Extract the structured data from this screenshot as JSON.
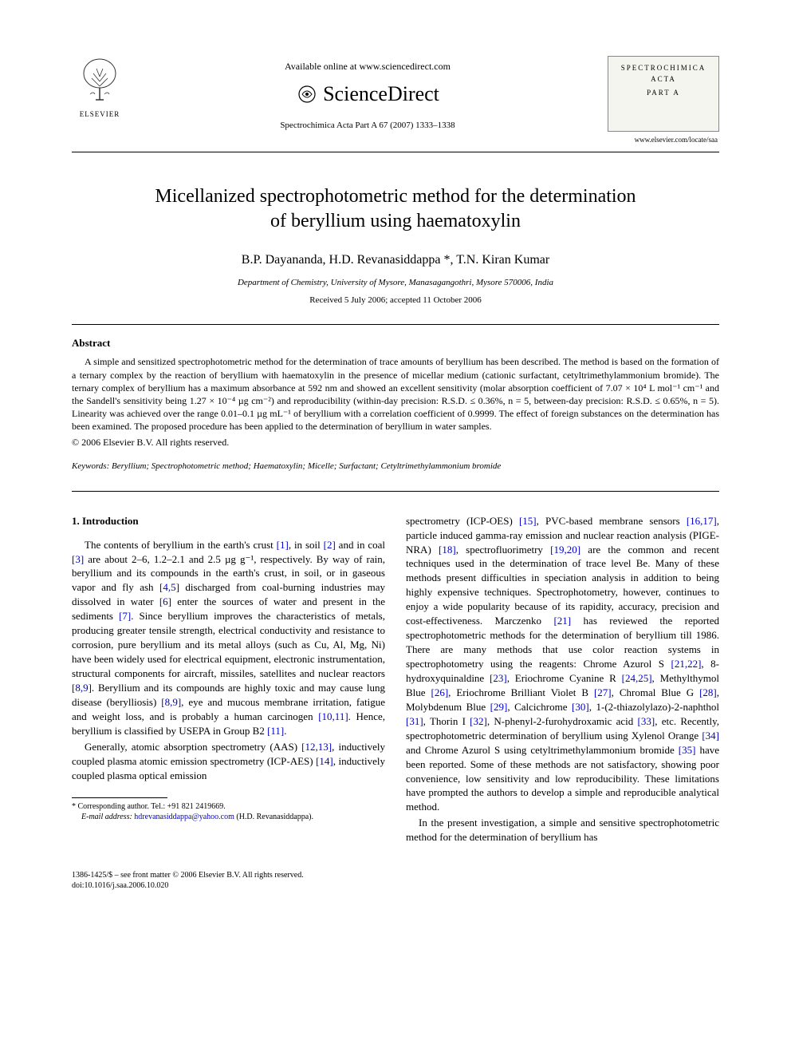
{
  "header": {
    "available_online": "Available online at www.sciencedirect.com",
    "sd_brand": "ScienceDirect",
    "elsevier_label": "ELSEVIER",
    "journal_ref": "Spectrochimica Acta Part A 67 (2007) 1333–1338",
    "journal_box_line1": "SPECTROCHIMICA",
    "journal_box_line2": "ACTA",
    "journal_box_line3": "PART A",
    "journal_url": "www.elsevier.com/locate/saa"
  },
  "article": {
    "title_line1": "Micellanized spectrophotometric method for the determination",
    "title_line2": "of beryllium using haematoxylin",
    "authors": "B.P. Dayananda, H.D. Revanasiddappa *, T.N. Kiran Kumar",
    "affiliation": "Department of Chemistry, University of Mysore, Manasagangothri, Mysore 570006, India",
    "dates": "Received 5 July 2006; accepted 11 October 2006"
  },
  "abstract": {
    "heading": "Abstract",
    "body": "A simple and sensitized spectrophotometric method for the determination of trace amounts of beryllium has been described. The method is based on the formation of a ternary complex by the reaction of beryllium with haematoxylin in the presence of micellar medium (cationic surfactant, cetyltrimethylammonium bromide). The ternary complex of beryllium has a maximum absorbance at 592 nm and showed an excellent sensitivity (molar absorption coefficient of 7.07 × 10⁴ L mol⁻¹ cm⁻¹ and the Sandell's sensitivity being 1.27 × 10⁻⁴ µg cm⁻²) and reproducibility (within-day precision: R.S.D. ≤ 0.36%, n = 5, between-day precision: R.S.D. ≤ 0.65%, n = 5). Linearity was achieved over the range 0.01–0.1 µg mL⁻¹ of beryllium with a correlation coefficient of 0.9999. The effect of foreign substances on the determination has been examined. The proposed procedure has been applied to the determination of beryllium in water samples.",
    "copyright": "© 2006 Elsevier B.V. All rights reserved."
  },
  "keywords": {
    "label": "Keywords:",
    "list": " Beryllium; Spectrophotometric method; Haematoxylin; Micelle; Surfactant; Cetyltrimethylammonium bromide"
  },
  "intro": {
    "heading": "1. Introduction",
    "col1_p1": "The contents of beryllium in the earth's crust [1], in soil [2] and in coal [3] are about 2–6, 1.2–2.1 and 2.5 µg g⁻¹, respectively. By way of rain, beryllium and its compounds in the earth's crust, in soil, or in gaseous vapor and fly ash [4,5] discharged from coal-burning industries may dissolved in water [6] enter the sources of water and present in the sediments [7]. Since beryllium improves the characteristics of metals, producing greater tensile strength, electrical conductivity and resistance to corrosion, pure beryllium and its metal alloys (such as Cu, Al, Mg, Ni) have been widely used for electrical equipment, electronic instrumentation, structural components for aircraft, missiles, satellites and nuclear reactors [8,9]. Beryllium and its compounds are highly toxic and may cause lung disease (berylliosis) [8,9], eye and mucous membrane irritation, fatigue and weight loss, and is probably a human carcinogen [10,11]. Hence, beryllium is classified by USEPA in Group B2 [11].",
    "col1_p2": "Generally, atomic absorption spectrometry (AAS) [12,13], inductively coupled plasma atomic emission spectrometry (ICP-AES) [14], inductively coupled plasma optical emission",
    "col2_p1": "spectrometry (ICP-OES) [15], PVC-based membrane sensors [16,17], particle induced gamma-ray emission and nuclear reaction analysis (PIGE-NRA) [18], spectrofluorimetry [19,20] are the common and recent techniques used in the determination of trace level Be. Many of these methods present difficulties in speciation analysis in addition to being highly expensive techniques. Spectrophotometry, however, continues to enjoy a wide popularity because of its rapidity, accuracy, precision and cost-effectiveness. Marczenko [21] has reviewed the reported spectrophotometric methods for the determination of beryllium till 1986. There are many methods that use color reaction systems in spectrophotometry using the reagents: Chrome Azurol S [21,22], 8-hydroxyquinaldine [23], Eriochrome Cyanine R [24,25], Methylthymol Blue [26], Eriochrome Brilliant Violet B [27], Chromal Blue G [28], Molybdenum Blue [29], Calcichrome [30], 1-(2-thiazolylazo)-2-naphthol [31], Thorin I [32], N-phenyl-2-furohydroxamic acid [33], etc. Recently, spectrophotometric determination of beryllium using Xylenol Orange [34] and Chrome Azurol S using cetyltrimethylammonium bromide [35] have been reported. Some of these methods are not satisfactory, showing poor convenience, low sensitivity and low reproducibility. These limitations have prompted the authors to develop a simple and reproducible analytical method.",
    "col2_p2": "In the present investigation, a simple and sensitive spectrophotometric method for the determination of beryllium has"
  },
  "footnote": {
    "corr": "* Corresponding author. Tel.: +91 821 2419669.",
    "email_label": "E-mail address:",
    "email": "hdrevanasiddappa@yahoo.com",
    "email_name": "(H.D. Revanasiddappa)."
  },
  "footer": {
    "line1": "1386-1425/$ – see front matter © 2006 Elsevier B.V. All rights reserved.",
    "line2": "doi:10.1016/j.saa.2006.10.020"
  },
  "colors": {
    "text": "#000000",
    "link": "#0000cc",
    "journal_box_bg": "#f5f5f0",
    "journal_box_border": "#888888"
  },
  "typography": {
    "title_fontsize": 24,
    "authors_fontsize": 16,
    "body_fontsize": 13,
    "abstract_fontsize": 12,
    "footnote_fontsize": 10
  }
}
